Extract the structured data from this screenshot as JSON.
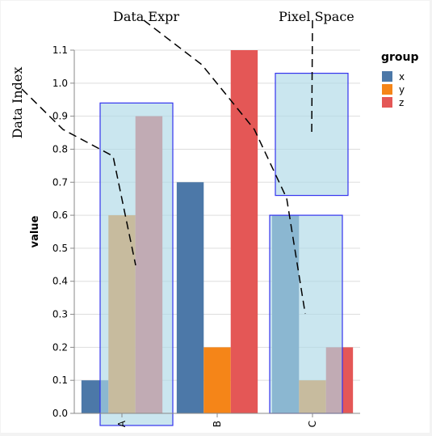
{
  "chart_data": {
    "type": "bar",
    "grouped": true,
    "categories": [
      "A",
      "B",
      "C"
    ],
    "series": [
      {
        "name": "x",
        "color": "#4c78a8",
        "values": [
          0.1,
          0.7,
          0.6
        ]
      },
      {
        "name": "y",
        "color": "#f58518",
        "values": [
          0.6,
          0.2,
          0.1
        ]
      },
      {
        "name": "z",
        "color": "#e45756",
        "values": [
          0.9,
          1.1,
          0.2
        ]
      }
    ],
    "ylabel": "value",
    "ylim": [
      0,
      1.1
    ],
    "yticks": [
      "0.0",
      "0.1",
      "0.2",
      "0.3",
      "0.4",
      "0.5",
      "0.6",
      "0.7",
      "0.8",
      "0.9",
      "1.0",
      "1.1"
    ],
    "grid": true,
    "legend": {
      "title": "group",
      "position": "right"
    },
    "annotations": {
      "data_expr": "Data Expr",
      "pixel_space": "Pixel Space",
      "data_index": "Data Index"
    },
    "highlight_color": "#add8e6",
    "highlight_stroke": "#3333ee"
  }
}
